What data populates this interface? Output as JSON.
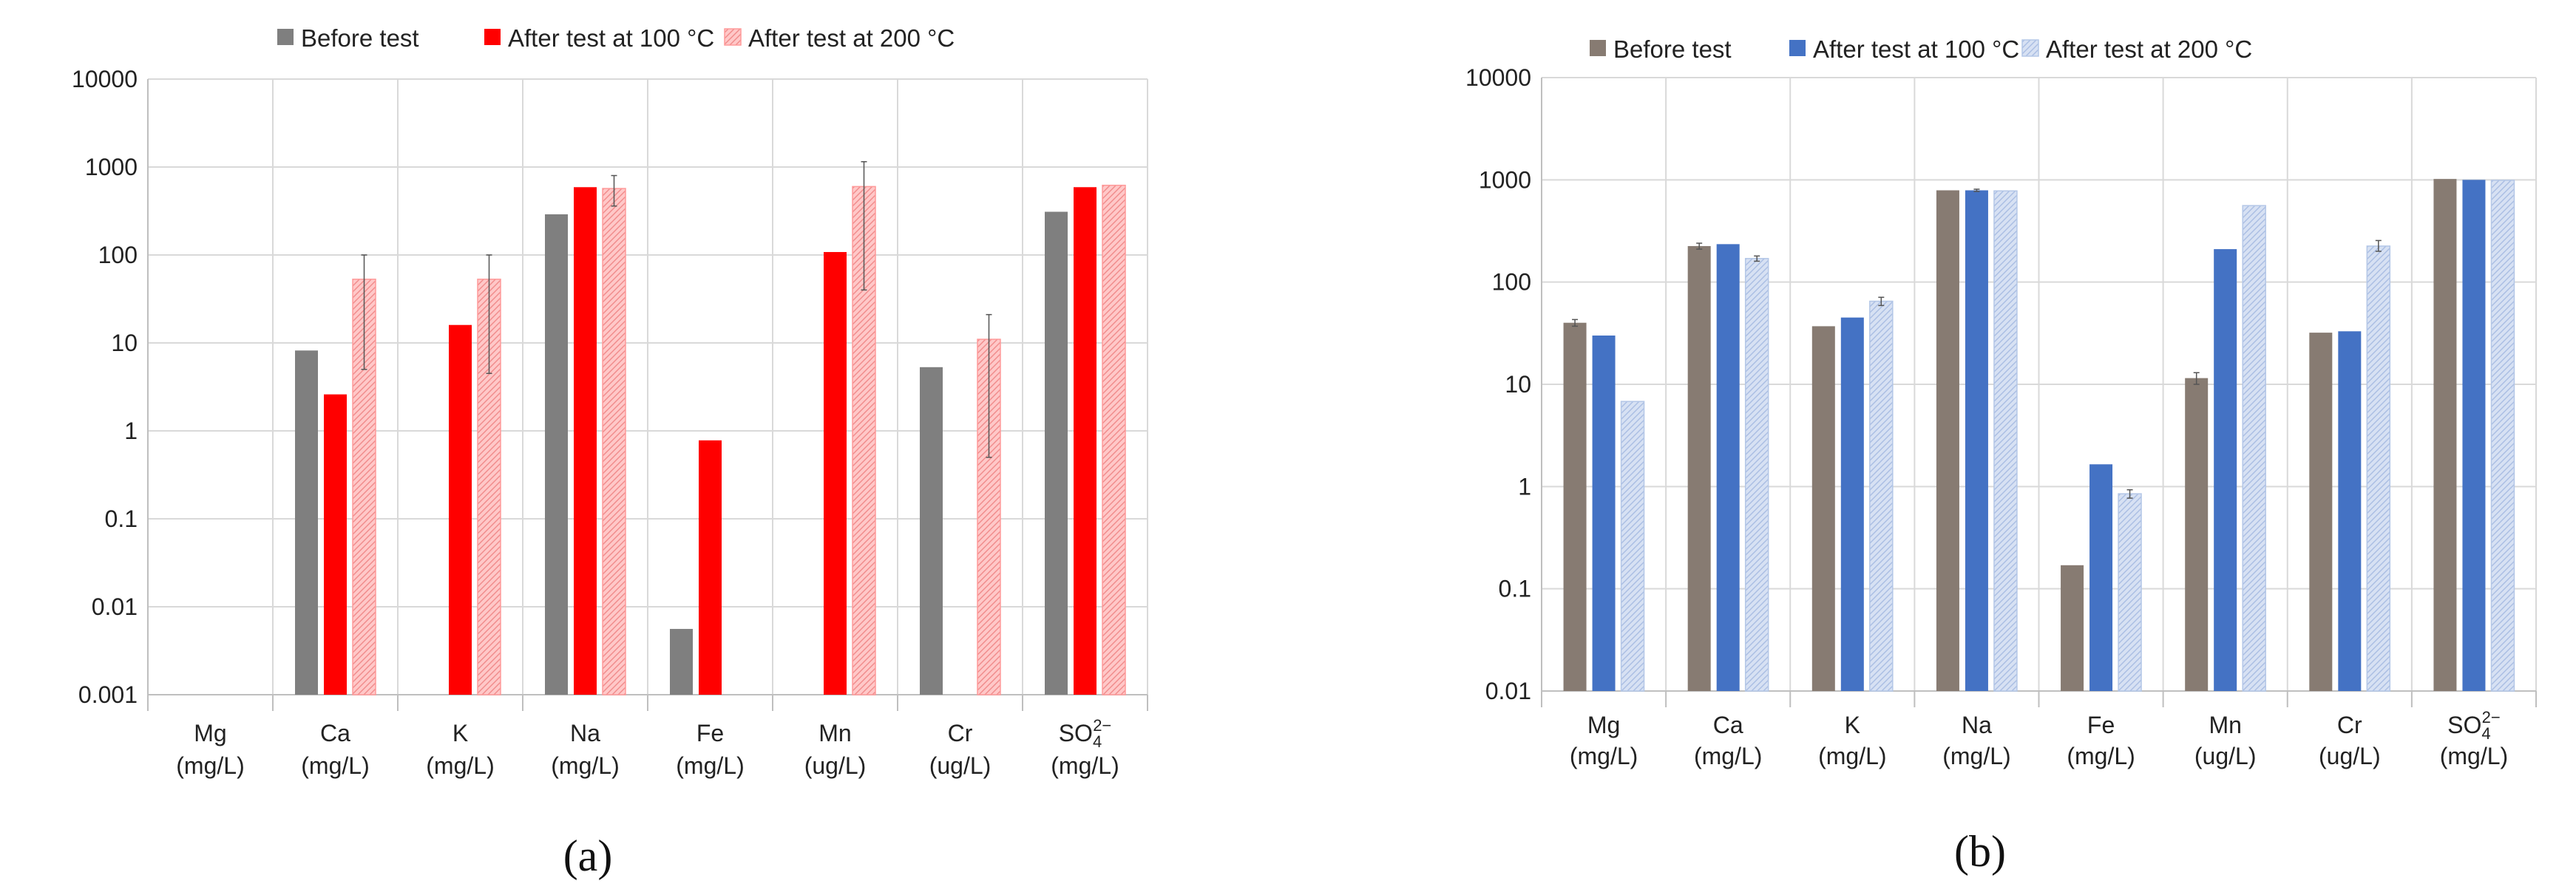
{
  "figure": {
    "panel_a_label": "(a)",
    "panel_b_label": "(b)"
  },
  "chart_data": [
    {
      "type": "bar",
      "y_scale": "log",
      "ylim": [
        0.001,
        10000
      ],
      "y_ticks": [
        "0.001",
        "0.01",
        "0.1",
        "1",
        "10",
        "100",
        "1000",
        "10000"
      ],
      "grid": true,
      "legend_position": "top",
      "categories": [
        "Mg",
        "Ca",
        "K",
        "Na",
        "Fe",
        "Mn",
        "Cr",
        "SO42−"
      ],
      "units": [
        "(mg/L)",
        "(mg/L)",
        "(mg/L)",
        "(mg/L)",
        "(mg/L)",
        "(ug/L)",
        "(ug/L)",
        "(mg/L)"
      ],
      "series": [
        {
          "name": "Before test",
          "color": "#7f7f7f",
          "pattern": "solid",
          "values": [
            null,
            8.2,
            null,
            290,
            0.0056,
            null,
            5.3,
            310
          ],
          "errors": [
            null,
            null,
            null,
            null,
            null,
            null,
            null,
            null
          ]
        },
        {
          "name": "After test at 100 °C",
          "color": "#ff0000",
          "pattern": "solid",
          "values": [
            null,
            2.6,
            16,
            590,
            0.78,
            108,
            null,
            590
          ],
          "errors": [
            null,
            null,
            null,
            null,
            null,
            null,
            null,
            null
          ]
        },
        {
          "name": "After test at 200 °C",
          "color": "#ffbdbd",
          "pattern": "hatched",
          "values": [
            null,
            53,
            53,
            570,
            null,
            600,
            11,
            620
          ],
          "errors": [
            null,
            [
              5,
              100
            ],
            [
              4.5,
              100
            ],
            [
              360,
              800
            ],
            null,
            [
              40,
              1150
            ],
            [
              0.5,
              21
            ],
            null
          ]
        }
      ]
    },
    {
      "type": "bar",
      "y_scale": "log",
      "ylim": [
        0.01,
        10000
      ],
      "y_ticks": [
        "0.01",
        "0.1",
        "1",
        "10",
        "100",
        "1000",
        "10000"
      ],
      "grid": true,
      "legend_position": "top",
      "categories": [
        "Mg",
        "Ca",
        "K",
        "Na",
        "Fe",
        "Mn",
        "Cr",
        "SO42−"
      ],
      "units": [
        "(mg/L)",
        "(mg/L)",
        "(mg/L)",
        "(mg/L)",
        "(mg/L)",
        "(ug/L)",
        "(ug/L)",
        "(mg/L)"
      ],
      "series": [
        {
          "name": "Before test",
          "color": "#877b72",
          "pattern": "solid",
          "values": [
            40,
            225,
            37,
            790,
            0.17,
            11.5,
            32,
            1020
          ],
          "errors": [
            [
              37,
              43
            ],
            [
              210,
              240
            ],
            null,
            null,
            null,
            [
              10,
              13
            ],
            null,
            null
          ]
        },
        {
          "name": "After test at 100 °C",
          "color": "#4472c4",
          "pattern": "solid",
          "values": [
            30,
            235,
            45,
            790,
            1.65,
            210,
            33,
            1000
          ],
          "errors": [
            null,
            null,
            null,
            [
              770,
              810
            ],
            null,
            null,
            null,
            null
          ]
        },
        {
          "name": "After test at 200 °C",
          "color": "#c9d6ee",
          "pattern": "hatched",
          "values": [
            6.8,
            170,
            65,
            780,
            0.85,
            560,
            225,
            990
          ],
          "errors": [
            null,
            [
              160,
              180
            ],
            [
              59,
              71
            ],
            null,
            [
              0.77,
              0.93
            ],
            null,
            [
              200,
              255
            ],
            null
          ]
        }
      ]
    }
  ]
}
